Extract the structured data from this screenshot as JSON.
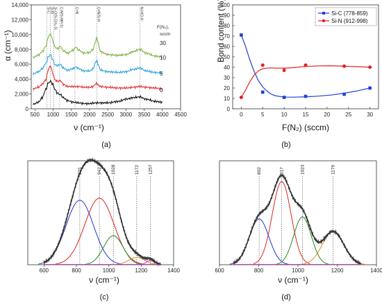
{
  "chart_data": [
    {
      "panel": "(a)",
      "type": "line",
      "xlabel": "ν (cm⁻¹)",
      "ylabel": "α (cm⁻¹)",
      "xlim": [
        400,
        4500
      ],
      "ylim": [
        0,
        14000
      ],
      "xticks": [
        500,
        1000,
        1500,
        2000,
        2500,
        3000,
        3500,
        4000,
        4500
      ],
      "yticks": [
        0,
        2000,
        4000,
        6000,
        8000,
        10000,
        12000,
        14000
      ],
      "ytick_labels": [
        "0",
        "2,000",
        "4,000",
        "6,000",
        "8,000",
        "10,000",
        "12,000",
        "14,000"
      ],
      "legend_title": "F(N₂), sccm",
      "peak_lines": [
        {
          "x": 830,
          "label": "Si-C"
        },
        {
          "x": 920,
          "label": "Si-N"
        },
        {
          "x": 1020,
          "label": "Si-O/Si-CH₂-Si"
        },
        {
          "x": 1180,
          "label": "C-N/Si-NH-Si"
        },
        {
          "x": 1600,
          "label": "C=N"
        },
        {
          "x": 2200,
          "label": "C≡N/Si-H"
        },
        {
          "x": 3380,
          "label": "N-H/O-H"
        }
      ],
      "series": [
        {
          "name": "30",
          "color": "#7cb342",
          "baseline": 6600,
          "points": [
            [
              450,
              6900
            ],
            [
              600,
              7250
            ],
            [
              700,
              7700
            ],
            [
              800,
              8400
            ],
            [
              870,
              9700
            ],
            [
              930,
              10100
            ],
            [
              990,
              9200
            ],
            [
              1050,
              8300
            ],
            [
              1120,
              8100
            ],
            [
              1200,
              8400
            ],
            [
              1280,
              7800
            ],
            [
              1400,
              7500
            ],
            [
              1550,
              7900
            ],
            [
              1620,
              8300
            ],
            [
              1700,
              7900
            ],
            [
              1850,
              7500
            ],
            [
              2000,
              7600
            ],
            [
              2100,
              8000
            ],
            [
              2160,
              9000
            ],
            [
              2200,
              9600
            ],
            [
              2240,
              8800
            ],
            [
              2300,
              7700
            ],
            [
              2500,
              7300
            ],
            [
              2800,
              7200
            ],
            [
              3000,
              7300
            ],
            [
              3200,
              7700
            ],
            [
              3380,
              8000
            ],
            [
              3550,
              7500
            ],
            [
              3800,
              7100
            ],
            [
              4000,
              7000
            ]
          ]
        },
        {
          "name": "10",
          "color": "#29a3e0",
          "baseline": 4700,
          "points": [
            [
              450,
              4700
            ],
            [
              600,
              5000
            ],
            [
              700,
              5400
            ],
            [
              800,
              6100
            ],
            [
              870,
              7000
            ],
            [
              930,
              7300
            ],
            [
              990,
              6600
            ],
            [
              1050,
              5900
            ],
            [
              1120,
              5800
            ],
            [
              1200,
              6000
            ],
            [
              1280,
              5500
            ],
            [
              1400,
              5200
            ],
            [
              1550,
              5400
            ],
            [
              1620,
              5650
            ],
            [
              1700,
              5400
            ],
            [
              1850,
              5100
            ],
            [
              2000,
              5100
            ],
            [
              2100,
              5400
            ],
            [
              2160,
              6200
            ],
            [
              2200,
              6500
            ],
            [
              2240,
              5900
            ],
            [
              2300,
              5200
            ],
            [
              2500,
              5000
            ],
            [
              2800,
              4900
            ],
            [
              3000,
              5000
            ],
            [
              3200,
              5300
            ],
            [
              3380,
              5500
            ],
            [
              3550,
              5100
            ],
            [
              3800,
              4900
            ],
            [
              4000,
              4800
            ]
          ]
        },
        {
          "name": "5",
          "color": "#e03030",
          "baseline": 2800,
          "points": [
            [
              450,
              2700
            ],
            [
              600,
              2900
            ],
            [
              700,
              3300
            ],
            [
              800,
              3900
            ],
            [
              870,
              5300
            ],
            [
              930,
              5800
            ],
            [
              990,
              4800
            ],
            [
              1050,
              3900
            ],
            [
              1120,
              3700
            ],
            [
              1200,
              3800
            ],
            [
              1280,
              3300
            ],
            [
              1400,
              3000
            ],
            [
              1550,
              3000
            ],
            [
              1700,
              3000
            ],
            [
              1850,
              2900
            ],
            [
              2000,
              2900
            ],
            [
              2100,
              3000
            ],
            [
              2160,
              3300
            ],
            [
              2200,
              3400
            ],
            [
              2240,
              3200
            ],
            [
              2300,
              3000
            ],
            [
              2500,
              2900
            ],
            [
              2800,
              2800
            ],
            [
              3000,
              2800
            ],
            [
              3200,
              2900
            ],
            [
              3380,
              3000
            ],
            [
              3550,
              2900
            ],
            [
              3800,
              2800
            ],
            [
              4000,
              2700
            ]
          ]
        },
        {
          "name": "0",
          "color": "#111111",
          "baseline": 700,
          "points": [
            [
              450,
              600
            ],
            [
              600,
              900
            ],
            [
              700,
              1500
            ],
            [
              800,
              2600
            ],
            [
              870,
              3500
            ],
            [
              930,
              3700
            ],
            [
              990,
              3300
            ],
            [
              1050,
              2600
            ],
            [
              1120,
              2100
            ],
            [
              1200,
              1900
            ],
            [
              1280,
              1500
            ],
            [
              1400,
              1100
            ],
            [
              1550,
              900
            ],
            [
              1700,
              800
            ],
            [
              1850,
              700
            ],
            [
              2000,
              700
            ],
            [
              2200,
              800
            ],
            [
              2500,
              800
            ],
            [
              2800,
              1000
            ],
            [
              3000,
              1300
            ],
            [
              3200,
              1500
            ],
            [
              3380,
              1600
            ],
            [
              3550,
              1300
            ],
            [
              3800,
              1000
            ],
            [
              4000,
              900
            ]
          ]
        }
      ]
    },
    {
      "panel": "(b)",
      "type": "line",
      "xlabel": "F(N₂) (sccm)",
      "ylabel": "Bond content (%)",
      "xlim": [
        -2,
        32
      ],
      "ylim": [
        0,
        100
      ],
      "xticks": [
        0,
        5,
        10,
        15,
        20,
        25,
        30
      ],
      "yticks": [
        0,
        10,
        20,
        30,
        40,
        50,
        60,
        70,
        80,
        90,
        100
      ],
      "legend_position": "top-right",
      "series": [
        {
          "name": "Si-C (778-859)",
          "color": "#1f3fd6",
          "marker": "square",
          "x": [
            0,
            5,
            10,
            15,
            24,
            30
          ],
          "values": [
            71,
            16,
            11,
            12,
            14,
            20
          ]
        },
        {
          "name": "Si-N (912-998)",
          "color": "#e02020",
          "marker": "circle",
          "x": [
            0,
            5,
            10,
            15,
            24,
            30
          ],
          "values": [
            11,
            42,
            37,
            42,
            41,
            40
          ]
        }
      ],
      "fit_curves": [
        {
          "color": "#1f3fd6",
          "points": [
            [
              0,
              71
            ],
            [
              1,
              60
            ],
            [
              2,
              47
            ],
            [
              3,
              36
            ],
            [
              4,
              27
            ],
            [
              5,
              21
            ],
            [
              6,
              17
            ],
            [
              7,
              14
            ],
            [
              8,
              12.5
            ],
            [
              10,
              11.3
            ],
            [
              12,
              11.2
            ],
            [
              15,
              11.5
            ],
            [
              18,
              12.2
            ],
            [
              21,
              13.3
            ],
            [
              24,
              15
            ],
            [
              27,
              17.2
            ],
            [
              30,
              20
            ]
          ]
        },
        {
          "color": "#e02020",
          "points": [
            [
              0,
              11
            ],
            [
              1,
              18
            ],
            [
              2,
              26
            ],
            [
              3,
              32.5
            ],
            [
              4,
              36.5
            ],
            [
              5,
              38.5
            ],
            [
              6,
              39.2
            ],
            [
              7,
              39.3
            ],
            [
              8,
              39.2
            ],
            [
              10,
              39.1
            ],
            [
              12,
              39.6
            ],
            [
              15,
              40.7
            ],
            [
              18,
              41.3
            ],
            [
              21,
              41.4
            ],
            [
              24,
              41
            ],
            [
              27,
              40.5
            ],
            [
              30,
              40
            ]
          ]
        }
      ]
    },
    {
      "panel": "(c)",
      "type": "area",
      "xlabel": "ν (cm⁻¹)",
      "xlim": [
        500,
        1400
      ],
      "ylim": [
        0,
        1
      ],
      "xticks": [
        600,
        800,
        1000,
        1200,
        1400
      ],
      "peak_lines": [
        {
          "x": 821,
          "label": "821"
        },
        {
          "x": 942,
          "label": "942"
        },
        {
          "x": 1028,
          "label": "1028"
        },
        {
          "x": 1172,
          "label": "1172"
        },
        {
          "x": 1257,
          "label": "1257"
        }
      ],
      "components": [
        {
          "center": 821,
          "amplitude": 0.62,
          "width": 85,
          "color": "#2233cc"
        },
        {
          "center": 942,
          "amplitude": 0.64,
          "width": 90,
          "color": "#dd2222"
        },
        {
          "center": 1028,
          "amplitude": 0.28,
          "width": 60,
          "color": "#228822"
        },
        {
          "center": 1172,
          "amplitude": 0.07,
          "width": 50,
          "color": "#e08a1e"
        },
        {
          "center": 1257,
          "amplitude": 0.04,
          "width": 25,
          "color": "#cc22cc"
        }
      ],
      "data_color": "#555555",
      "fit_color": "#111111"
    },
    {
      "panel": "(d)",
      "type": "area",
      "xlabel": "ν (cm⁻¹)",
      "xlim": [
        600,
        1400
      ],
      "ylim": [
        0,
        1
      ],
      "xticks": [
        600,
        800,
        1000,
        1200,
        1400
      ],
      "peak_lines": [
        {
          "x": 802,
          "label": "802"
        },
        {
          "x": 917,
          "label": "917"
        },
        {
          "x": 1023,
          "label": "1023"
        },
        {
          "x": 1179,
          "label": "1179"
        }
      ],
      "components": [
        {
          "center": 802,
          "amplitude": 0.44,
          "width": 50,
          "color": "#2233cc"
        },
        {
          "center": 917,
          "amplitude": 0.8,
          "width": 48,
          "color": "#dd2222"
        },
        {
          "center": 1023,
          "amplitude": 0.46,
          "width": 45,
          "color": "#228822"
        },
        {
          "center": 1179,
          "amplitude": 0.32,
          "width": 55,
          "color": "#e08a1e"
        }
      ],
      "data_color": "#555555",
      "fit_color": "#111111"
    }
  ]
}
